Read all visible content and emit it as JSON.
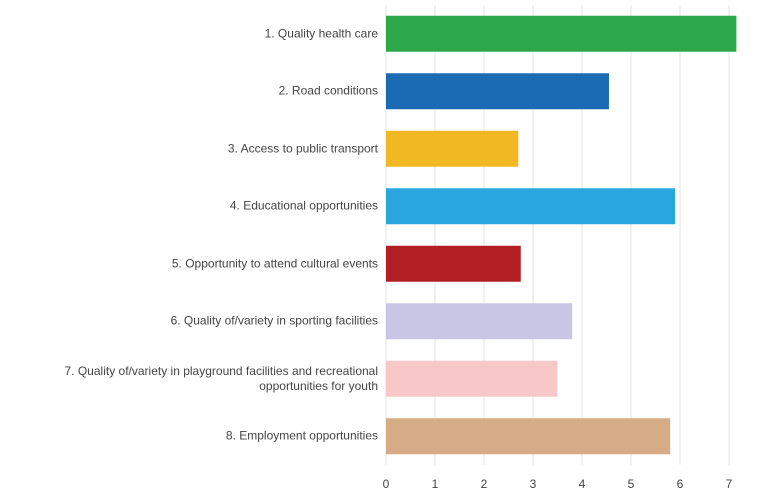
{
  "chart_data": {
    "type": "bar",
    "orientation": "horizontal",
    "categories": [
      "1. Quality health care",
      "2. Road conditions",
      "3. Access to public transport",
      "4. Educational opportunities",
      "5. Opportunity to attend cultural events",
      "6. Quality of/variety in sporting facilities",
      "7. Quality of/variety in playground facilities and recreational opportunities for youth",
      "8. Employment opportunities"
    ],
    "values": [
      7.15,
      4.55,
      2.7,
      5.9,
      2.75,
      3.8,
      3.5,
      5.8
    ],
    "colors": [
      "#2ca84a",
      "#1a6ab4",
      "#f2b824",
      "#2aa6de",
      "#b11f24",
      "#c9c5e4",
      "#f8c7c8",
      "#d5ac86"
    ],
    "xlim": [
      0,
      7.2
    ],
    "xticks": [
      0,
      1,
      2,
      3,
      4,
      5,
      6,
      7
    ],
    "grid": true
  }
}
